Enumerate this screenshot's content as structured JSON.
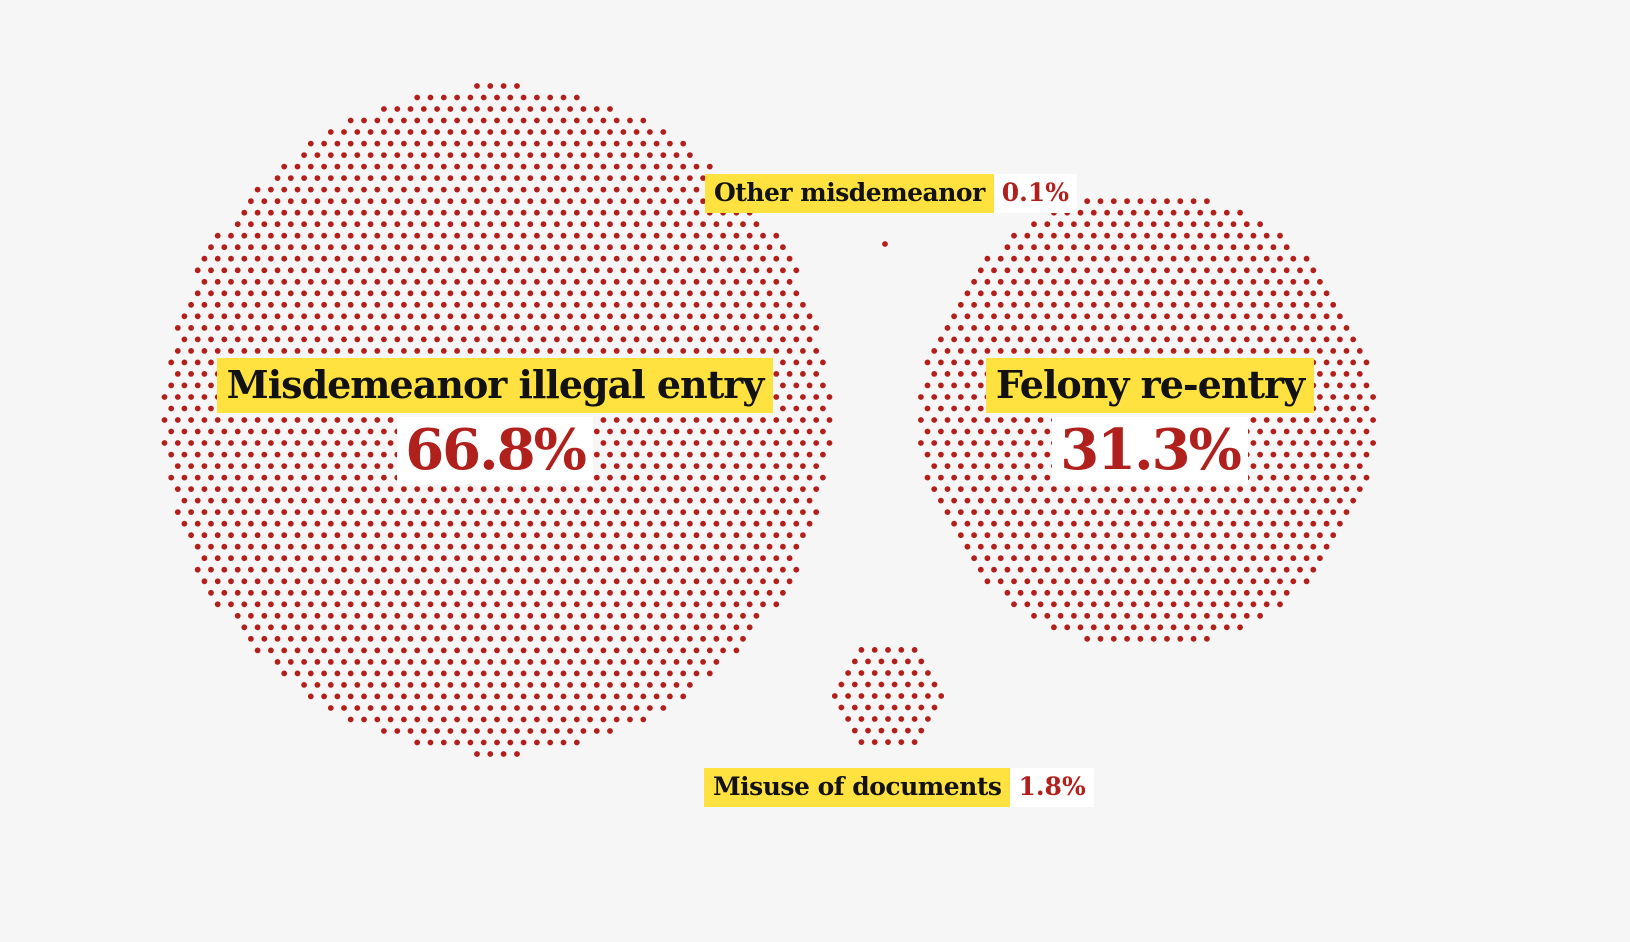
{
  "chart_data": {
    "type": "bubble-dot",
    "unit": "%",
    "colors": {
      "dot": "#b3201c",
      "highlight": "#ffe23f",
      "text": "#121212",
      "value_text": "#b0201c"
    },
    "categories": [
      {
        "id": "misdemeanor",
        "name": "Misdemeanor illegal entry",
        "value": 66.8,
        "value_label": "66.8%"
      },
      {
        "id": "felony",
        "name": "Felony re-entry",
        "value": 31.3,
        "value_label": "31.3%"
      },
      {
        "id": "other",
        "name": "Other misdemeanor",
        "value": 0.1,
        "value_label": "0.1%"
      },
      {
        "id": "misuse",
        "name": "Misuse of documents",
        "value": 1.8,
        "value_label": "1.8%"
      }
    ]
  }
}
